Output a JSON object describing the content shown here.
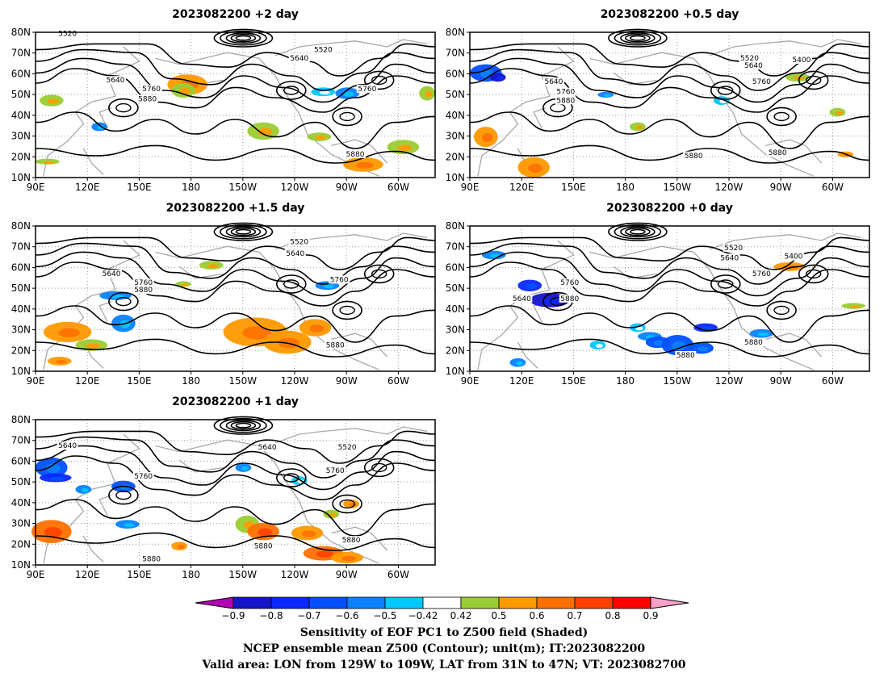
{
  "panels": [
    {
      "title": "2023082200 +2 day",
      "contour_labels": [
        "5520",
        "5520",
        "5640",
        "5640",
        "5760",
        "5880",
        "5760",
        "5880"
      ]
    },
    {
      "title": "2023082200 +0.5 day",
      "contour_labels": [
        "5520",
        "5400",
        "5640",
        "5640",
        "5760",
        "5880",
        "5760",
        "5880",
        "5880"
      ]
    },
    {
      "title": "2023082200 +1.5 day",
      "contour_labels": [
        "5520",
        "5640",
        "5640",
        "5760",
        "5880",
        "5760",
        "5880"
      ]
    },
    {
      "title": "2023082200 +0 day",
      "contour_labels": [
        "5520",
        "5400",
        "5640",
        "5760",
        "5640",
        "5760",
        "5880",
        "5880",
        "5880"
      ]
    },
    {
      "title": "2023082200 +1 day",
      "contour_labels": [
        "5640",
        "5640",
        "5520",
        "5760",
        "5760",
        "5880",
        "5880",
        "5880"
      ]
    }
  ],
  "lat_labels": [
    "80N",
    "70N",
    "60N",
    "50N",
    "40N",
    "30N",
    "20N",
    "10N"
  ],
  "lon_labels": [
    "90E",
    "120E",
    "150E",
    "180",
    "150W",
    "120W",
    "90W",
    "60W"
  ],
  "colorbar": {
    "tick_labels": [
      "-0.9",
      "-0.8",
      "-0.7",
      "-0.6",
      "-0.5",
      "-0.42",
      "0.42",
      "0.5",
      "0.6",
      "0.7",
      "0.8",
      "0.9"
    ],
    "colors": [
      "#b400b4",
      "#1414c8",
      "#0a28ff",
      "#0050ff",
      "#0a82ff",
      "#00c8ff",
      "#ffffff",
      "#9acd32",
      "#ff9900",
      "#ff7000",
      "#ff4000",
      "#ff0000",
      "#f8a0c8"
    ]
  },
  "caption": {
    "line1": "Sensitivity of EOF PC1 to Z500 field (Shaded)",
    "line2": "NCEP ensemble mean Z500 (Contour); unit(m); IT:2023082200",
    "line3": "Valid area: LON from 129W to 109W, LAT from 31N to 47N; VT: 2023082700"
  }
}
